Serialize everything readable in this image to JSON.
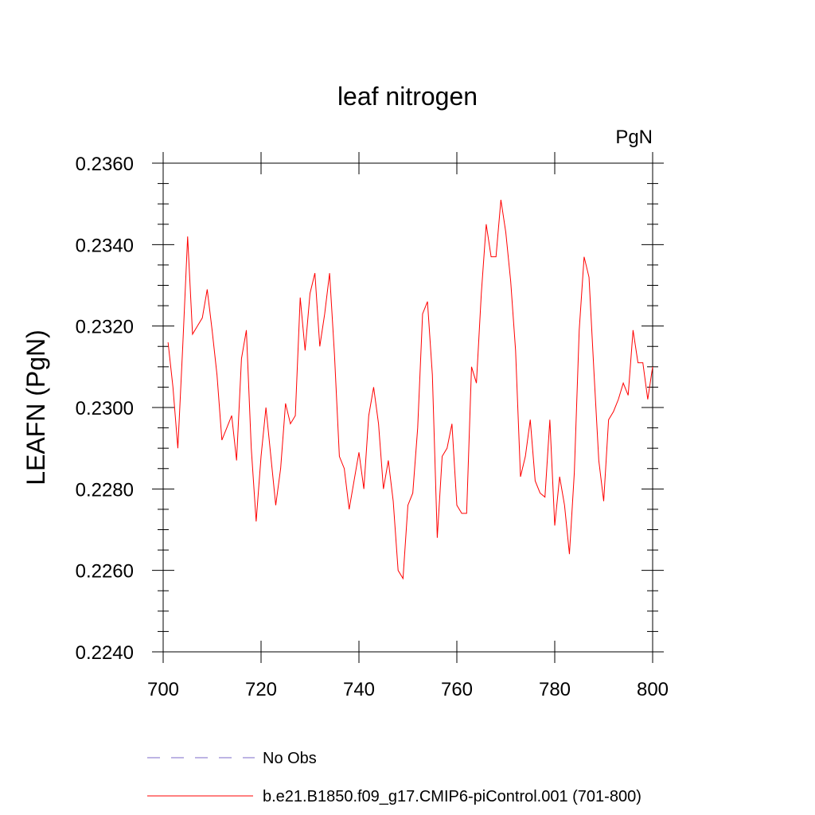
{
  "chart_data": {
    "type": "line",
    "title": "leaf nitrogen",
    "units": "PgN",
    "xlabel": "",
    "ylabel": "LEAFN  (PgN)",
    "xlim": [
      700,
      800
    ],
    "ylim": [
      0.224,
      0.236
    ],
    "xticks": [
      700,
      720,
      740,
      760,
      780,
      800
    ],
    "xtick_labels": [
      "700",
      "720",
      "740",
      "760",
      "780",
      "800"
    ],
    "yticks": [
      0.224,
      0.226,
      0.228,
      0.23,
      0.232,
      0.234,
      0.236
    ],
    "ytick_labels": [
      "0.2240",
      "0.2260",
      "0.2280",
      "0.2300",
      "0.2320",
      "0.2340",
      "0.2360"
    ],
    "grid": false,
    "legend_position": "bottom",
    "series": [
      {
        "name": "No Obs",
        "color": "#7b68c8",
        "style": "dashed",
        "x": [],
        "values": []
      },
      {
        "name": "b.e21.B1850.f09_g17.CMIP6-piControl.001 (701-800)",
        "color": "#ff0000",
        "style": "solid",
        "x": [
          701,
          702,
          703,
          704,
          705,
          706,
          707,
          708,
          709,
          710,
          711,
          712,
          713,
          714,
          715,
          716,
          717,
          718,
          719,
          720,
          721,
          722,
          723,
          724,
          725,
          726,
          727,
          728,
          729,
          730,
          731,
          732,
          733,
          734,
          735,
          736,
          737,
          738,
          739,
          740,
          741,
          742,
          743,
          744,
          745,
          746,
          747,
          748,
          749,
          750,
          751,
          752,
          753,
          754,
          755,
          756,
          757,
          758,
          759,
          760,
          761,
          762,
          763,
          764,
          765,
          766,
          767,
          768,
          769,
          770,
          771,
          772,
          773,
          774,
          775,
          776,
          777,
          778,
          779,
          780,
          781,
          782,
          783,
          784,
          785,
          786,
          787,
          788,
          789,
          790,
          791,
          792,
          793,
          794,
          795,
          796,
          797,
          798,
          799,
          800
        ],
        "values": [
          0.2316,
          0.2305,
          0.229,
          0.2315,
          0.2342,
          0.2318,
          0.232,
          0.2322,
          0.2329,
          0.2319,
          0.2308,
          0.2292,
          0.2295,
          0.2298,
          0.2287,
          0.2312,
          0.2319,
          0.229,
          0.2272,
          0.2288,
          0.23,
          0.2288,
          0.2276,
          0.2285,
          0.2301,
          0.2296,
          0.2298,
          0.2327,
          0.2314,
          0.2328,
          0.2333,
          0.2315,
          0.2323,
          0.2333,
          0.2313,
          0.2288,
          0.2285,
          0.2275,
          0.2282,
          0.2289,
          0.228,
          0.2298,
          0.2305,
          0.2296,
          0.228,
          0.2287,
          0.2277,
          0.226,
          0.2258,
          0.2276,
          0.2279,
          0.2295,
          0.2323,
          0.2326,
          0.2308,
          0.2268,
          0.2288,
          0.229,
          0.2296,
          0.2276,
          0.2274,
          0.2274,
          0.231,
          0.2306,
          0.2328,
          0.2345,
          0.2337,
          0.2337,
          0.2351,
          0.2343,
          0.2331,
          0.2314,
          0.2283,
          0.2288,
          0.2297,
          0.2282,
          0.2279,
          0.2278,
          0.2297,
          0.2271,
          0.2283,
          0.2276,
          0.2264,
          0.2284,
          0.2319,
          0.2337,
          0.2332,
          0.2309,
          0.2287,
          0.2277,
          0.2297,
          0.2299,
          0.2302,
          0.2306,
          0.2303,
          0.2319,
          0.2311,
          0.2311,
          0.2302,
          0.231
        ]
      }
    ]
  }
}
